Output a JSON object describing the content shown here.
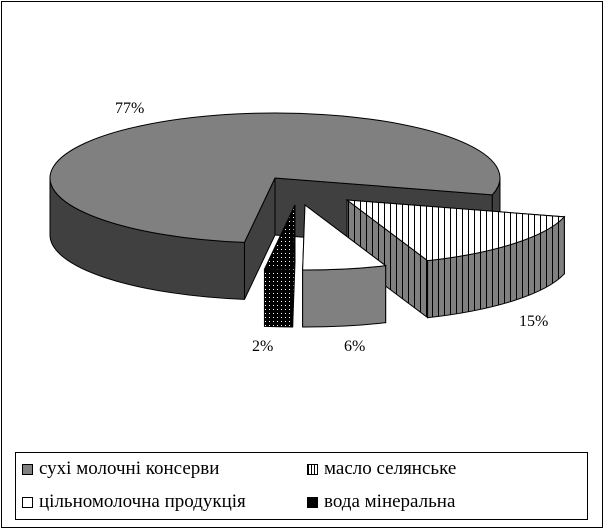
{
  "chart_data": {
    "type": "pie",
    "variant": "3d-exploded",
    "title": "",
    "slices": [
      {
        "name": "масло селянське",
        "value": 15,
        "label": "15%",
        "top_color": "#ffffff",
        "side_color": "#808080",
        "pattern": "vertical-lines"
      },
      {
        "name": "цільномолочна продукція",
        "value": 6,
        "label": "6%",
        "top_color": "#ffffff",
        "side_color": "#808080",
        "pattern": "solid"
      },
      {
        "name": "вода мінеральна",
        "value": 2,
        "label": "2%",
        "top_color": "#000000",
        "side_color": "#000000",
        "pattern": "dots"
      },
      {
        "name": "сухі молочні консерви",
        "value": 77,
        "label": "77%",
        "top_color": "#808080",
        "side_color": "#404040",
        "pattern": "solid"
      }
    ],
    "legend": {
      "position": "bottom",
      "entries": [
        "сухі молочні консерви",
        "масло селянське",
        "цільномолочна продукція",
        "вода мінеральна"
      ]
    }
  }
}
